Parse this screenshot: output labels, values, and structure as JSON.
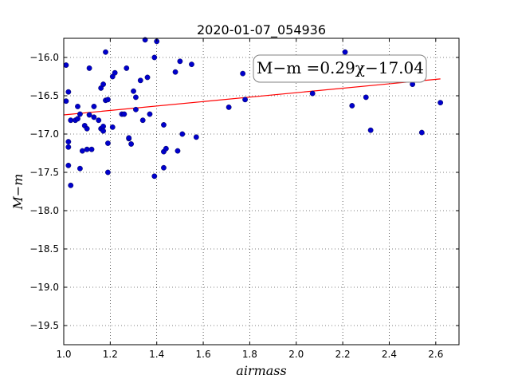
{
  "chart_data": {
    "type": "scatter",
    "title": "2020-01-07_054936",
    "xlabel": "airmass",
    "ylabel": "M−m",
    "xlim": [
      1.0,
      2.7
    ],
    "ylim": [
      -19.75,
      -15.75
    ],
    "y_inverted": true,
    "grid": "dotted",
    "x_ticks": [
      "1.0",
      "1.2",
      "1.4",
      "1.6",
      "1.8",
      "2.0",
      "2.2",
      "2.4",
      "2.6"
    ],
    "y_ticks": [
      "−16.0",
      "−16.5",
      "−17.0",
      "−17.5",
      "−18.0",
      "−18.5",
      "−19.0",
      "−19.5"
    ],
    "annotation": "M−m =0.29χ−17.04",
    "fit": {
      "slope": 0.29,
      "intercept": -17.04,
      "x_range": [
        1.0,
        2.62
      ],
      "color": "#ff0000"
    },
    "marker_color": "#0000cc",
    "series": [
      {
        "x": [
          1.01,
          1.01,
          1.02,
          1.02,
          1.02,
          1.02,
          1.03,
          1.03,
          1.05,
          1.06,
          1.06,
          1.07,
          1.07,
          1.08,
          1.09,
          1.1,
          1.1,
          1.11,
          1.11,
          1.12,
          1.13,
          1.13,
          1.15,
          1.16,
          1.16,
          1.17,
          1.17,
          1.17,
          1.18,
          1.18,
          1.19,
          1.19,
          1.19,
          1.21,
          1.21,
          1.22,
          1.25,
          1.26,
          1.27,
          1.28,
          1.28,
          1.29,
          1.3,
          1.31,
          1.31,
          1.33,
          1.34,
          1.35,
          1.36,
          1.37,
          1.39,
          1.39,
          1.4,
          1.43,
          1.43,
          1.43,
          1.44,
          1.48,
          1.49,
          1.5,
          1.51,
          1.55,
          1.57,
          1.71,
          1.77,
          1.78,
          2.07,
          2.21,
          2.24,
          2.3,
          2.32,
          2.5,
          2.54,
          2.62
        ],
        "y": [
          -16.1,
          -16.57,
          -16.45,
          -17.1,
          -17.17,
          -17.41,
          -17.67,
          -16.82,
          -16.82,
          -16.64,
          -16.8,
          -16.74,
          -17.45,
          -17.22,
          -16.89,
          -17.2,
          -16.93,
          -16.14,
          -16.75,
          -17.2,
          -16.64,
          -16.78,
          -16.82,
          -16.93,
          -16.4,
          -16.35,
          -16.9,
          -16.96,
          -15.93,
          -16.56,
          -16.55,
          -17.5,
          -17.12,
          -16.25,
          -16.91,
          -16.2,
          -16.74,
          -16.74,
          -16.14,
          -17.06,
          -17.05,
          -17.13,
          -16.44,
          -16.52,
          -16.68,
          -16.3,
          -16.82,
          -15.77,
          -16.26,
          -16.74,
          -17.55,
          -16.0,
          -15.79,
          -16.88,
          -17.44,
          -17.23,
          -17.19,
          -16.19,
          -17.22,
          -16.05,
          -17.0,
          -16.09,
          -17.04,
          -16.65,
          -16.21,
          -16.55,
          -16.47,
          -15.93,
          -16.63,
          -16.52,
          -16.95,
          -16.35,
          -16.98,
          -16.59
        ]
      }
    ]
  }
}
